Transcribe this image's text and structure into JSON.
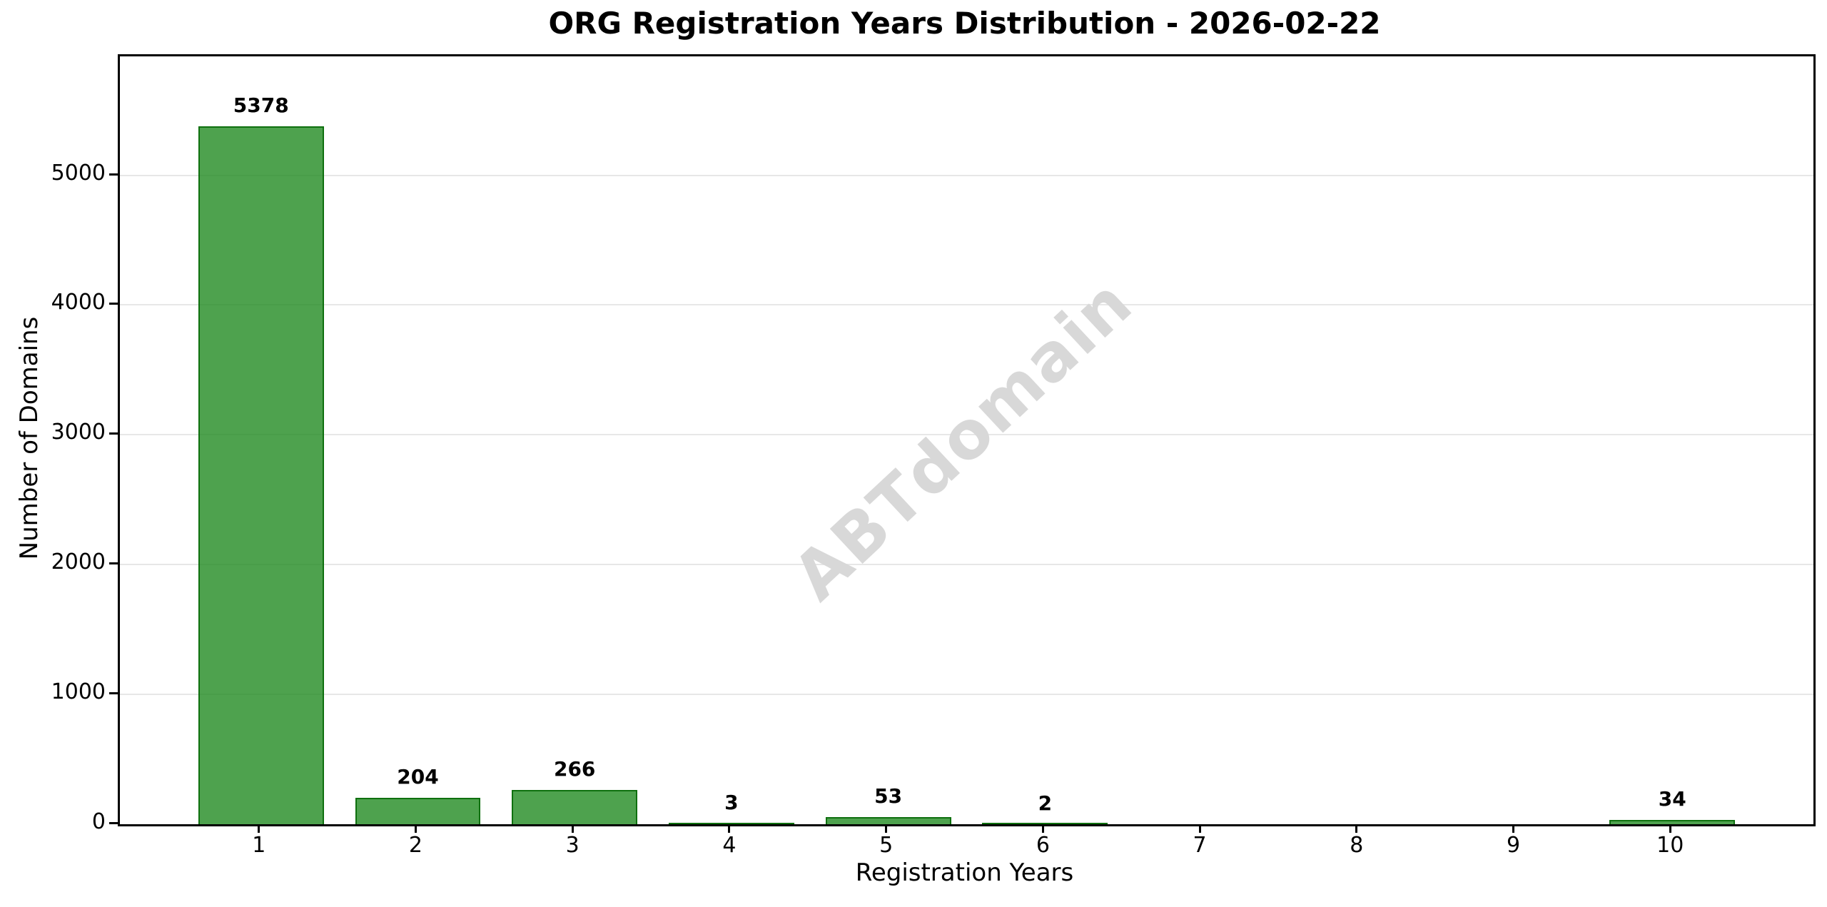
{
  "title": "ORG Registration Years Distribution - 2026-02-22",
  "chart_data": {
    "type": "bar",
    "title": "ORG Registration Years Distribution - 2026-02-22",
    "categories": [
      "1",
      "2",
      "3",
      "4",
      "5",
      "6",
      "7",
      "8",
      "9",
      "10"
    ],
    "values": [
      5378,
      204,
      266,
      3,
      53,
      2,
      0,
      0,
      0,
      34
    ],
    "value_labels": [
      "5378",
      "204",
      "266",
      "3",
      "53",
      "2",
      "",
      "",
      "",
      "34"
    ],
    "xlabel": "Registration Years",
    "ylabel": "Number of Domains",
    "ylim": [
      0,
      5916
    ],
    "yticks": [
      0,
      1000,
      2000,
      3000,
      4000,
      5000
    ],
    "grid": "horizontal-only",
    "legend": "none",
    "bar_fill_color": "#4ea24e",
    "bar_edge_color": "#2e7d2e",
    "gridline_color": "#e7e7e7",
    "watermark_text": "ABTdomain",
    "watermark_color": "#d8d8d8"
  }
}
